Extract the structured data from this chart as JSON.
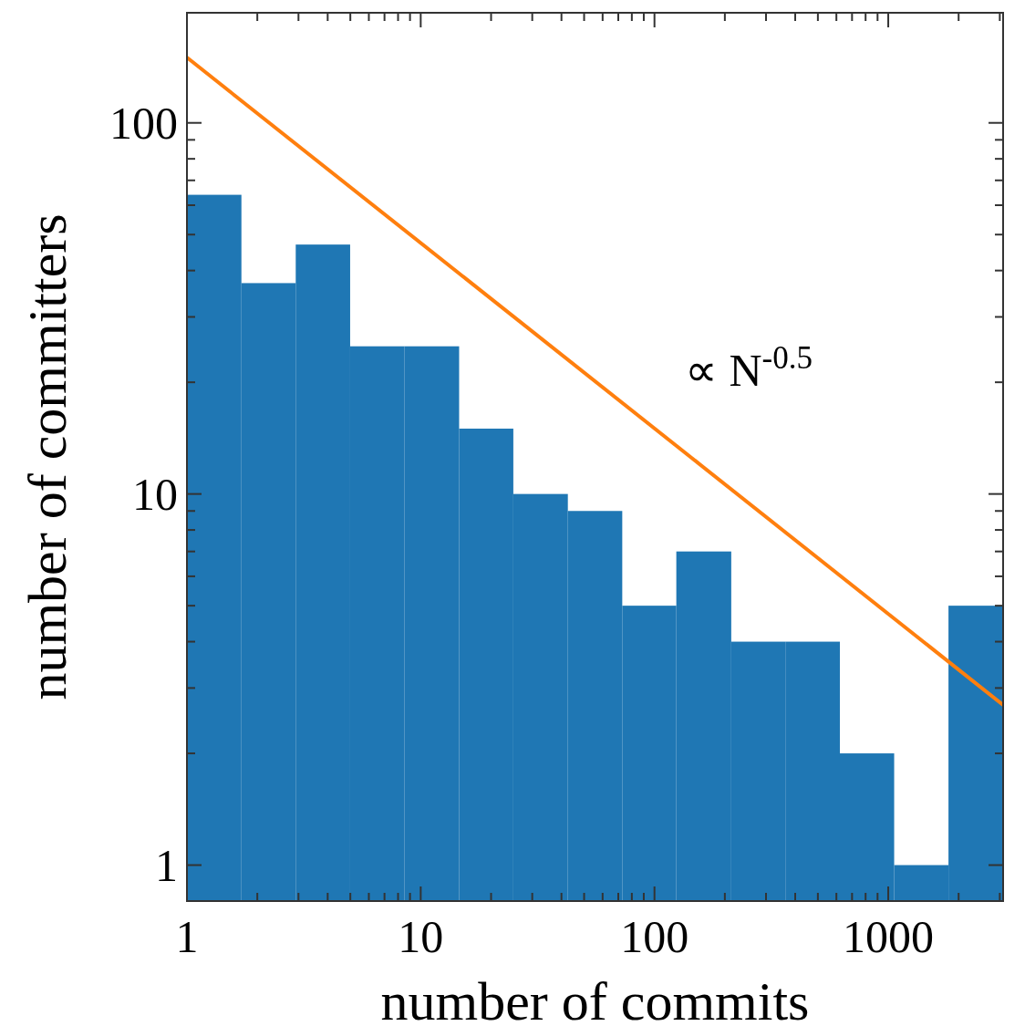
{
  "chart_data": {
    "type": "histogram",
    "xlabel": "number of commits",
    "ylabel": "number of committers",
    "log": "xy",
    "grid": false,
    "bins": [
      1,
      1.71,
      2.92,
      4.99,
      8.53,
      14.6,
      24.9,
      42.6,
      72.8,
      124,
      213,
      363,
      621,
      1060,
      1810,
      3100
    ],
    "series": [
      {
        "color": "#1f77b4",
        "values": [
          64,
          37,
          47,
          25,
          25,
          15,
          10,
          9,
          5,
          7,
          4,
          4,
          2,
          1,
          5
        ]
      },
      {
        "type": "line",
        "color": "#ff7f0e",
        "x": [
          1,
          3100
        ],
        "values": [
          150,
          2.7
        ]
      }
    ],
    "annotations": [
      "∝ N$^{-0.5}$"
    ],
    "xlim": [
      1,
      3100
    ],
    "ylim": [
      0.8,
      198
    ],
    "xticks": [
      1,
      {
        "value": 2,
        "label": null
      },
      {
        "value": 3,
        "label": null
      },
      {
        "value": 4,
        "label": null
      },
      {
        "value": 5,
        "label": null
      },
      {
        "value": 6,
        "label": null
      },
      {
        "value": 7,
        "label": null
      },
      {
        "value": 8,
        "label": null
      },
      {
        "value": 9,
        "label": null
      },
      10,
      {
        "value": 20,
        "label": null
      },
      {
        "value": 30,
        "label": null
      },
      {
        "value": 40,
        "label": null
      },
      {
        "value": 50,
        "label": null
      },
      {
        "value": 60,
        "label": null
      },
      {
        "value": 70,
        "label": null
      },
      {
        "value": 80,
        "label": null
      },
      {
        "value": 90,
        "label": null
      },
      100,
      {
        "value": 200,
        "label": null
      },
      {
        "value": 300,
        "label": null
      },
      {
        "value": 400,
        "label": null
      },
      {
        "value": 500,
        "label": null
      },
      {
        "value": 600,
        "label": null
      },
      {
        "value": 700,
        "label": null
      },
      {
        "value": 800,
        "label": null
      },
      {
        "value": 900,
        "label": null
      },
      1000,
      {
        "value": 2000,
        "label": null
      },
      {
        "value": 3000,
        "label": null
      }
    ],
    "yticks": [
      1,
      {
        "value": 2,
        "label": null
      },
      {
        "value": 3,
        "label": null
      },
      {
        "value": 4,
        "label": null
      },
      {
        "value": 5,
        "label": null
      },
      {
        "value": 6,
        "label": null
      },
      {
        "value": 7,
        "label": null
      },
      {
        "value": 8,
        "label": null
      },
      {
        "value": 9,
        "label": null
      },
      10,
      {
        "value": 20,
        "label": null
      },
      {
        "value": 30,
        "label": null
      },
      {
        "value": 40,
        "label": null
      },
      {
        "value": 50,
        "label": null
      },
      {
        "value": 60,
        "label": null
      },
      {
        "value": 70,
        "label": null
      },
      {
        "value": 80,
        "label": null
      },
      {
        "value": 90,
        "label": null
      },
      100
    ]
  }
}
